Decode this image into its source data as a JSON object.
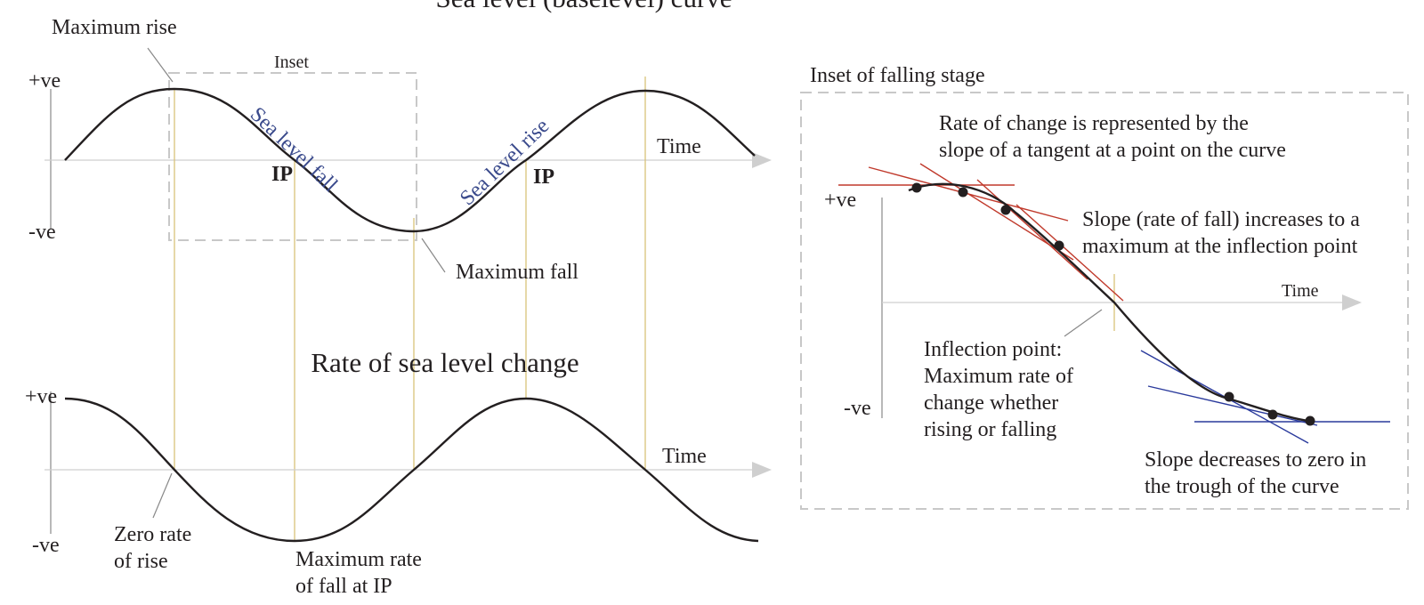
{
  "title": "Sea level (baselevel) curve",
  "top_chart": {
    "pos_label": "+ve",
    "neg_label": "-ve",
    "time_label": "Time",
    "inset_label": "Inset",
    "max_rise_label": "Maximum rise",
    "max_fall_label": "Maximum fall",
    "ip_label_1": "IP",
    "ip_label_2": "IP",
    "fall_curve_label": "Sea level fall",
    "rise_curve_label": "Sea level rise"
  },
  "bottom_chart": {
    "title": "Rate of sea level change",
    "pos_label": "+ve",
    "neg_label": "-ve",
    "time_label": "Time",
    "zero_rate_line1": "Zero rate",
    "zero_rate_line2": "of rise",
    "max_rate_line1": "Maximum rate",
    "max_rate_line2": "of fall at IP"
  },
  "inset_panel": {
    "title": "Inset of falling stage",
    "pos_label": "+ve",
    "neg_label": "-ve",
    "time_label": "Time",
    "rate_note_line1": "Rate of change is represented by the",
    "rate_note_line2": "slope of a tangent at a point on the curve",
    "slope_increase_line1": "Slope (rate of fall) increases to a",
    "slope_increase_line2": "maximum at the inflection point",
    "inflection_line1": "Inflection point:",
    "inflection_line2": "Maximum rate of",
    "inflection_line3": "change whether",
    "inflection_line4": "rising or falling",
    "slope_decrease_line1": "Slope decreases to zero in",
    "slope_decrease_line2": "the trough of the curve"
  },
  "colors": {
    "curve": "#231f20",
    "guide_lines": "#d8c27a",
    "tangent_falling": "#c0392b",
    "tangent_trough": "#2a3a9c",
    "curve_labels": "#3a4a8c",
    "inset_border": "#c8c8c8"
  }
}
